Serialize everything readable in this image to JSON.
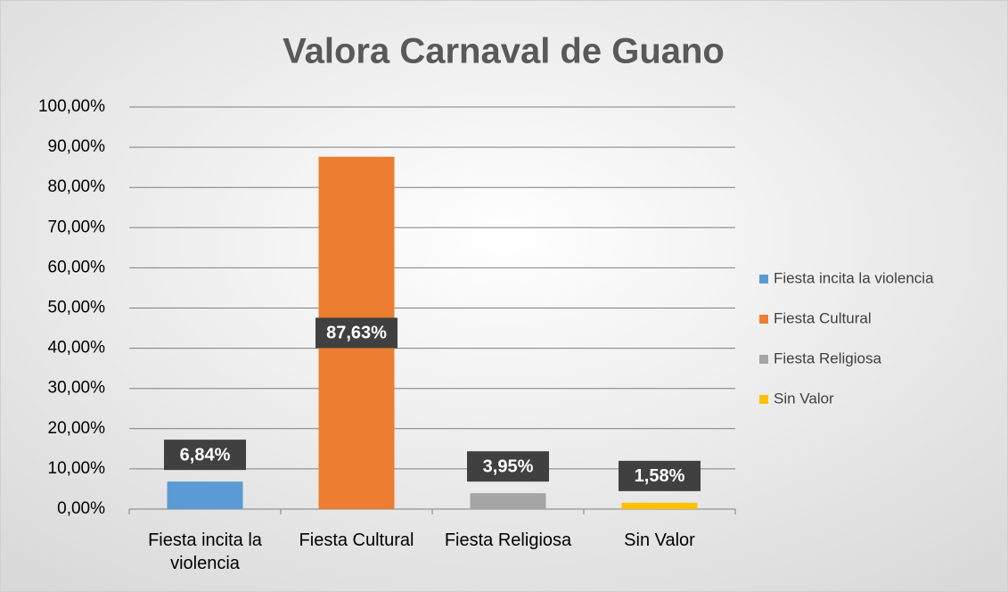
{
  "chart_data": {
    "type": "bar",
    "title": "Valora Carnaval de Guano",
    "categories": [
      "Fiesta incita la violencia",
      "Fiesta Cultural",
      "Fiesta Religiosa",
      "Sin Valor"
    ],
    "values": [
      6.84,
      87.63,
      3.95,
      1.58
    ],
    "value_labels": [
      "6,84%",
      "87,63%",
      "3,95%",
      "1,58%"
    ],
    "colors": [
      "#5b9bd5",
      "#ed7d31",
      "#a5a5a5",
      "#ffc000"
    ],
    "ylim": [
      0,
      100
    ],
    "yticks": [
      {
        "value": 0,
        "label": "0,00%"
      },
      {
        "value": 10,
        "label": "10,00%"
      },
      {
        "value": 20,
        "label": "20,00%"
      },
      {
        "value": 30,
        "label": "30,00%"
      },
      {
        "value": 40,
        "label": "40,00%"
      },
      {
        "value": 50,
        "label": "50,00%"
      },
      {
        "value": 60,
        "label": "60,00%"
      },
      {
        "value": 70,
        "label": "70,00%"
      },
      {
        "value": 80,
        "label": "80,00%"
      },
      {
        "value": 90,
        "label": "90,00%"
      },
      {
        "value": 100,
        "label": "100,00%"
      }
    ],
    "grid": true,
    "legend": "right"
  }
}
